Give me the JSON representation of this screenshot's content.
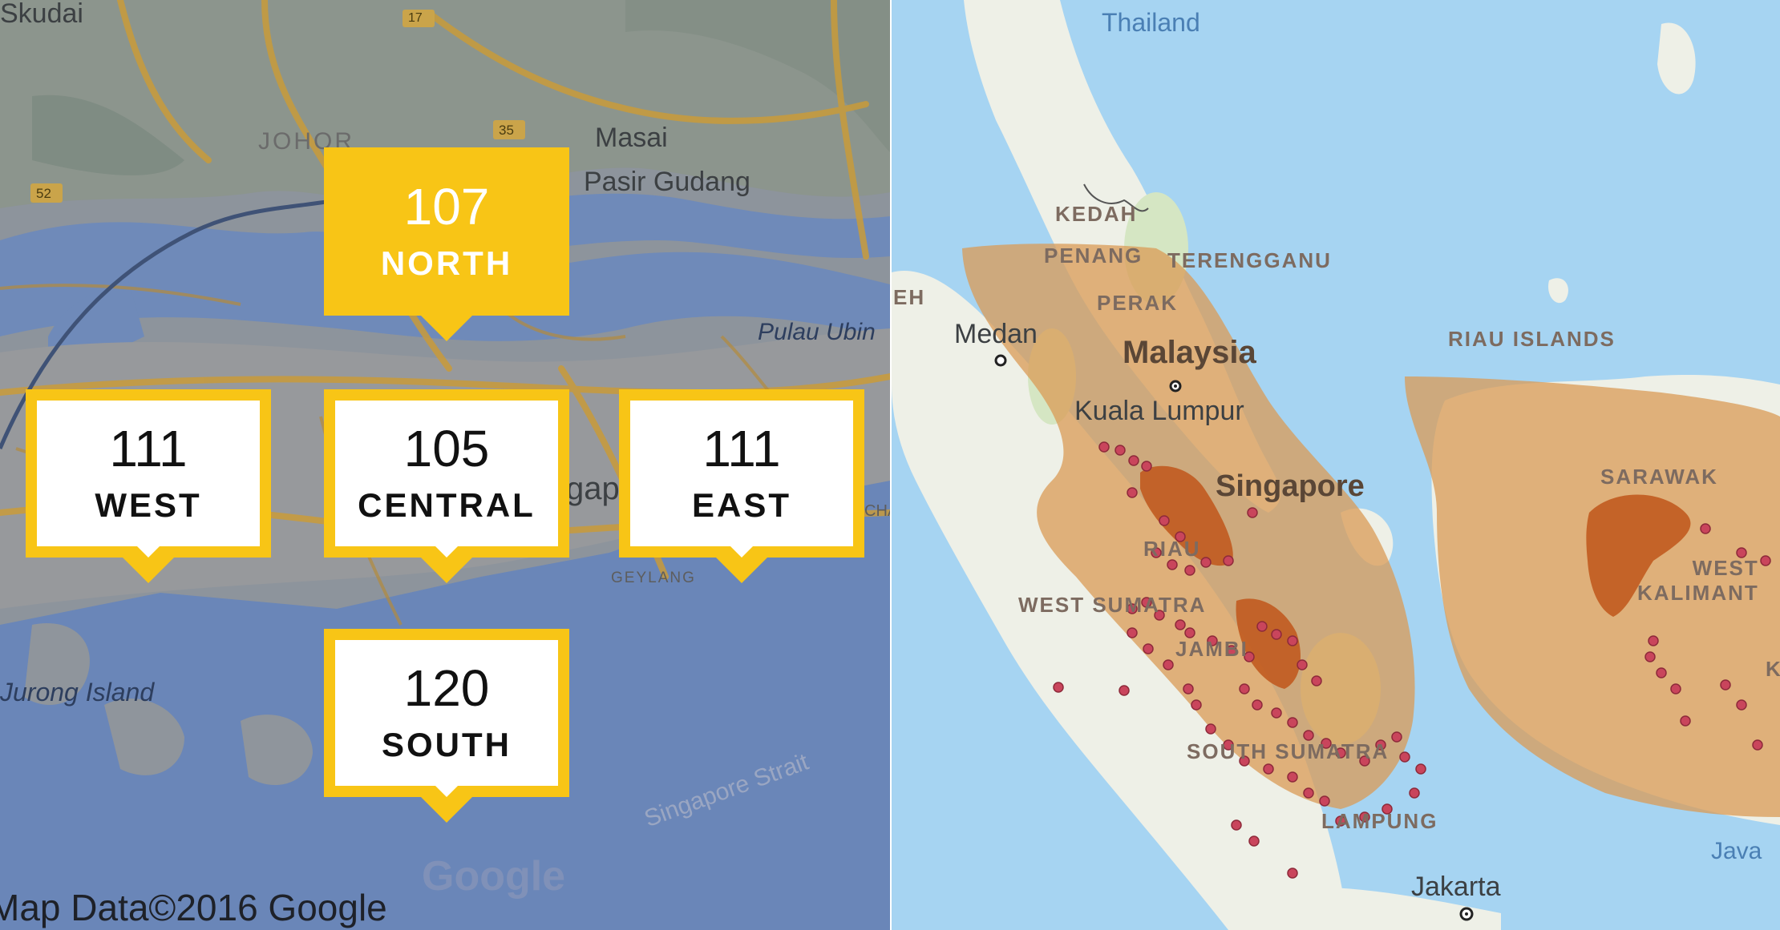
{
  "left_map": {
    "labels": {
      "skudai": "Skudai",
      "johor": "JOHOR",
      "masai": "Masai",
      "pasir_gudang": "Pasir Gudang",
      "pulau_ubin": "Pulau Ubin",
      "jurong_island": "Jurong Island",
      "geylang": "GEYLANG",
      "singapore_strait": "Singapore Strait",
      "singapore_partial": "gap",
      "changi_partial": "CHA"
    },
    "road_badges": [
      "17",
      "35",
      "52"
    ],
    "google_logo": "Google",
    "attribution": "Map Data©2016 Google"
  },
  "readings": [
    {
      "id": "north",
      "value": "107",
      "zone": "NORTH",
      "active": true
    },
    {
      "id": "west",
      "value": "111",
      "zone": "WEST",
      "active": false
    },
    {
      "id": "central",
      "value": "105",
      "zone": "CENTRAL",
      "active": false
    },
    {
      "id": "east",
      "value": "111",
      "zone": "EAST",
      "active": false
    },
    {
      "id": "south",
      "value": "120",
      "zone": "SOUTH",
      "active": false
    }
  ],
  "right_map": {
    "labels": {
      "thailand": "Thailand",
      "kedah": "KEDAH",
      "penang": "PENANG",
      "terengganu": "TERENGGANU",
      "perak": "PERAK",
      "medan": "Medan",
      "malaysia": "Malaysia",
      "kuala_lumpur": "Kuala Lumpur",
      "singapore": "Singapore",
      "riau_islands": "RIAU ISLANDS",
      "sarawak": "SARAWAK",
      "west_kalimantan": "WEST\nKALIMANT",
      "west_sumatra": "WEST SUMATRA",
      "riau": "RIAU",
      "jambi": "JAMBI",
      "south_sumatra": "SOUTH SUMATRA",
      "lampung": "LAMPUNG",
      "jakarta": "Jakarta",
      "java": "Java",
      "aceh_partial": "EH",
      "k_partial": "K"
    }
  },
  "colors": {
    "callout_yellow": "#f8c516",
    "haze_light": "#d99b56",
    "haze_dark": "#c0561a",
    "hotspot": "#c9455c",
    "sea": "#a6d4f2",
    "land": "#eef0e7"
  }
}
